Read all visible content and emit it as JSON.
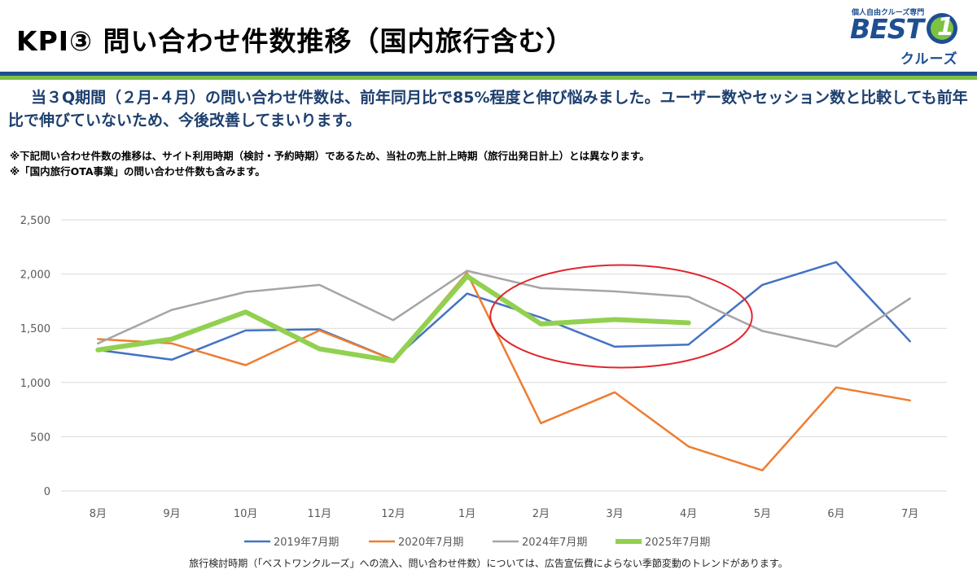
{
  "header": {
    "title": "KPI③ 問い合わせ件数推移（国内旅行含む）",
    "logo": {
      "tagline": "個人自由クルーズ専門",
      "word": "BEST",
      "numeral": "1",
      "sub": "クルーズ"
    }
  },
  "colors": {
    "brand_blue": "#1d4f91",
    "brand_green": "#7dc242",
    "lead_text": "#1d3f6e",
    "highlight_circle": "#e0262d"
  },
  "lead": "当３Q期間（２月-４月）の問い合わせ件数は、前年同月比で85%程度と伸び悩みました。ユーザー数やセッション数と比較しても前年比で伸びていないため、今後改善してまいります。",
  "notes": [
    "※下記問い合わせ件数の推移は、サイト利用時期（検討・予約時期）であるため、当社の売上計上時期（旅行出発日計上）とは異なります。",
    "※「国内旅行OTA事業」の問い合わせ件数も含みます。"
  ],
  "chart_data": {
    "type": "line",
    "categories": [
      "8月",
      "9月",
      "10月",
      "11月",
      "12月",
      "1月",
      "2月",
      "3月",
      "4月",
      "5月",
      "6月",
      "7月"
    ],
    "ylim": [
      0,
      2500
    ],
    "yticks": [
      0,
      500,
      1000,
      1500,
      2000,
      2500
    ],
    "ytick_labels": [
      "0",
      "500",
      "1,000",
      "1,500",
      "2,000",
      "2,500"
    ],
    "grid": true,
    "legend_position": "bottom",
    "series": [
      {
        "name": "2019年7月期",
        "color": "#4472c4",
        "width": 2.5,
        "values": [
          1300,
          1210,
          1480,
          1490,
          1210,
          1820,
          1600,
          1330,
          1350,
          1900,
          2110,
          1380
        ]
      },
      {
        "name": "2020年7月期",
        "color": "#ed7d31",
        "width": 2.5,
        "values": [
          1400,
          1360,
          1160,
          1480,
          1210,
          2010,
          625,
          910,
          410,
          190,
          955,
          835
        ]
      },
      {
        "name": "2024年7月期",
        "color": "#a5a5a5",
        "width": 2.5,
        "values": [
          1360,
          1670,
          1835,
          1900,
          1575,
          2030,
          1870,
          1840,
          1790,
          1475,
          1330,
          1775
        ]
      },
      {
        "name": "2025年7月期",
        "color": "#92d050",
        "width": 6,
        "values": [
          1300,
          1400,
          1650,
          1310,
          1200,
          1980,
          1540,
          1580,
          1550,
          null,
          null,
          null
        ]
      }
    ],
    "highlight": {
      "shape": "ellipse",
      "from_category": "2月",
      "to_category": "4月",
      "color": "#e0262d"
    }
  },
  "footnote": "旅行検討時期（「ベストワンクルーズ」への流入、問い合わせ件数）については、広告宣伝費によらない季節変動のトレンドがあります。"
}
